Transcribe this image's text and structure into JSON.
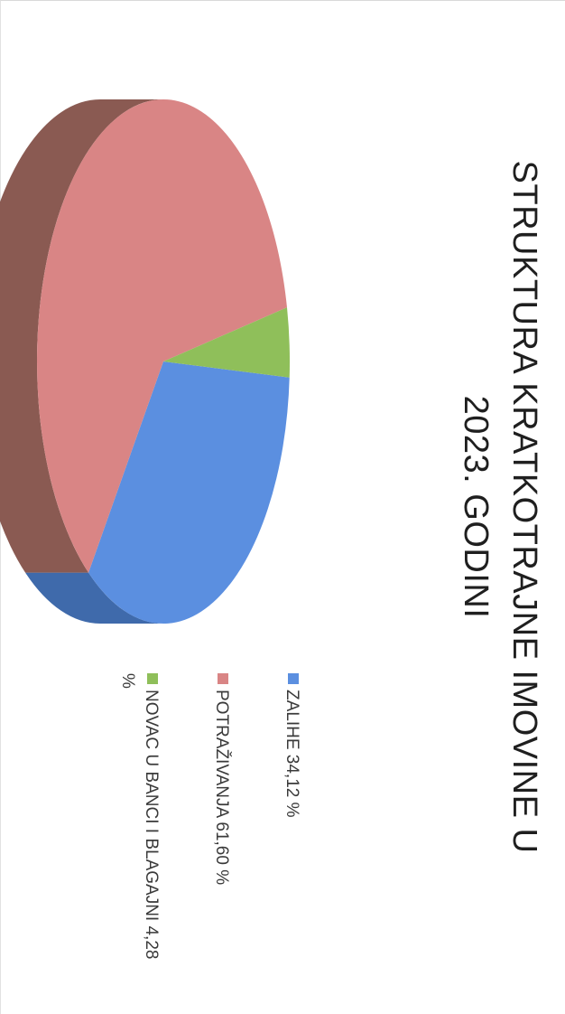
{
  "chart_data": {
    "type": "pie",
    "title_line1": "STRUKTURA KRATKOTRAJNE IMOVINE U",
    "title_line2": "2023. GODINI",
    "slices": [
      {
        "label": "ZALIHE 34,12 %",
        "value": 34.12,
        "color": "#5b8fe0",
        "side": "#3f6aab"
      },
      {
        "label": "POTRAŽIVANJA 61,60 %",
        "value": 61.6,
        "color": "#d98585",
        "side": "#8a5a52"
      },
      {
        "label": "NOVAC U BANCI I BLAGAJNI 4,28 %",
        "value": 4.28,
        "color": "#8fbf5a",
        "side": "#5f8a3a"
      }
    ]
  }
}
